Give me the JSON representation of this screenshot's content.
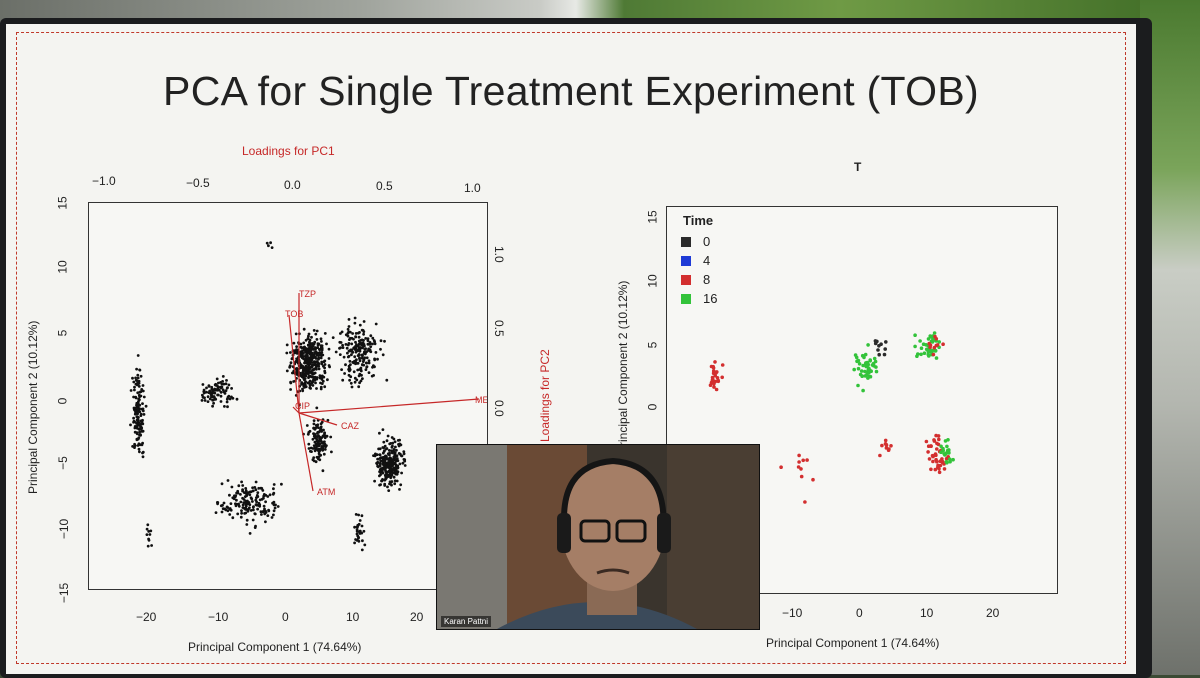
{
  "slide": {
    "title": "PCA for Single Treatment Experiment (TOB)"
  },
  "left_plot": {
    "top_axis_label": "Loadings for PC1",
    "top_ticks": [
      "−1.0",
      "−0.5",
      "0.0",
      "0.5",
      "1.0"
    ],
    "right_axis_label": "Loadings for PC2",
    "right_ticks": [
      "1.0",
      "0.5",
      "0.0"
    ],
    "y_axis_label": "Principal Component 2 (10.12%)",
    "y_ticks": [
      "15",
      "10",
      "5",
      "0",
      "−5",
      "−10",
      "−15"
    ],
    "x_ticks": [
      "−20",
      "−10",
      "0",
      "10",
      "20"
    ],
    "x_axis_label": "Principal Component 1 (74.64%)",
    "vectors": [
      "TZP",
      "TOB",
      "MEM",
      "CAZ",
      "ATM",
      "CIP"
    ]
  },
  "right_plot": {
    "title": "T",
    "y_axis_label": "Principal Component 2 (10.12%)",
    "y_ticks": [
      "15",
      "10",
      "5",
      "0"
    ],
    "x_ticks": [
      "−10",
      "0",
      "10",
      "20"
    ],
    "x_axis_label": "Principal Component 1 (74.64%)",
    "legend_title": "Time",
    "legend": [
      {
        "label": "0",
        "color": "#2b2b2b"
      },
      {
        "label": "4",
        "color": "#1f3bd6"
      },
      {
        "label": "8",
        "color": "#d32f2f"
      },
      {
        "label": "16",
        "color": "#33c33a"
      }
    ]
  },
  "webcam": {
    "name": "Karan Pattni"
  }
}
